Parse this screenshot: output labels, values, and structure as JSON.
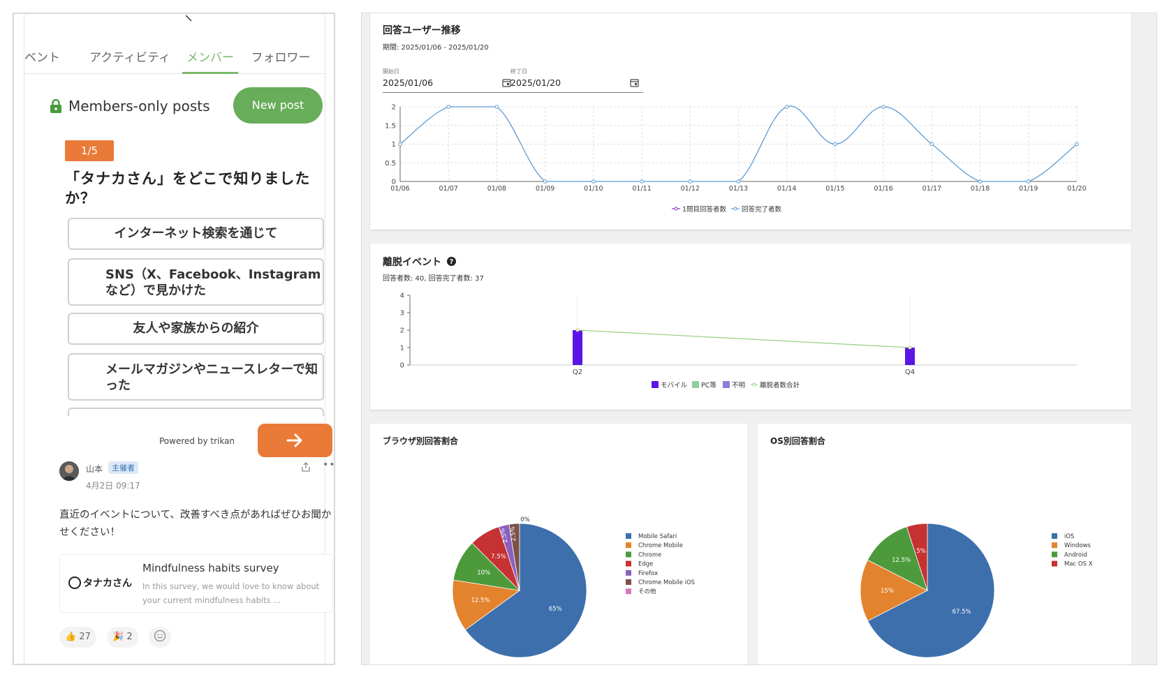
{
  "phone": {
    "tabs": [
      "ベント",
      "アクティビティ",
      "メンバー",
      "フォロワー"
    ],
    "active_tab_index": 2,
    "members_title": "Members-only posts",
    "new_post_label": "New post",
    "question_badge": "1/5",
    "question_text": "「タナカさん」をどこで知りましたか？",
    "options": [
      "インターネット検索を通じて",
      "SNS（X、Facebook、Instagramなど）で見かけた",
      "友人や家族からの紹介",
      "メールマガジンやニュースレターで知った"
    ],
    "powered_by": "Powered by trikan",
    "post": {
      "author": "山本",
      "role_badge": "主催者",
      "date": "4月2日 09:17",
      "body": "直近のイベントについて、改善すべき点があればぜひお聞かせください！",
      "survey_logo": "タナカさん",
      "survey_title": "Mindfulness habits survey",
      "survey_desc": "In this survey, we would love to know about your current mindfulness habits ..."
    },
    "reactions": [
      {
        "emoji": "👍",
        "count": "27"
      },
      {
        "emoji": "🎉",
        "count": "2"
      }
    ]
  },
  "dashboard": {
    "trend": {
      "title": "回答ユーザー推移",
      "period": "期間: 2025/01/06 - 2025/01/20",
      "start_label": "開始日",
      "start_value": "2025/01/06",
      "end_label": "終了日",
      "end_value": "2025/01/20"
    },
    "dropout": {
      "title": "離脱イベント",
      "subtitle": "回答者数: 40, 回答完了者数: 37"
    },
    "browser_title": "ブラウザ別回答割合",
    "os_title": "OS別回答割合"
  },
  "chart_data": [
    {
      "type": "line",
      "x": [
        "01/06",
        "01/07",
        "01/08",
        "01/09",
        "01/10",
        "01/11",
        "01/12",
        "01/13",
        "01/14",
        "01/15",
        "01/16",
        "01/17",
        "01/18",
        "01/19",
        "01/20"
      ],
      "series": [
        {
          "name": "1問目回答者数",
          "color": "#8b2fc9",
          "values": [
            1,
            2,
            2,
            0,
            0,
            0,
            0,
            0,
            2,
            1,
            2,
            1,
            0,
            0,
            1
          ]
        },
        {
          "name": "回答完了者数",
          "color": "#5b9bd5",
          "values": [
            1,
            2,
            2,
            0,
            0,
            0,
            0,
            0,
            2,
            1,
            2,
            1,
            0,
            0,
            1
          ]
        }
      ],
      "yticks": [
        "0",
        "0.5",
        "1",
        "1.5",
        "2"
      ],
      "ylim": [
        0,
        2
      ],
      "grid": true,
      "legend": "bottom"
    },
    {
      "type": "bar",
      "categories": [
        "Q2",
        "Q4"
      ],
      "series": [
        {
          "name": "モバイル",
          "color": "#5b16e6",
          "values": [
            2,
            1
          ]
        },
        {
          "name": "PC等",
          "color": "#8fd19e",
          "values": [
            0,
            0
          ]
        },
        {
          "name": "不明",
          "color": "#8b7fd6",
          "values": [
            0,
            0
          ]
        },
        {
          "name": "離脱者数合計",
          "color": "#9bd18a",
          "values": [
            2,
            1
          ],
          "line": true
        }
      ],
      "yticks": [
        "0",
        "1",
        "2",
        "3",
        "4"
      ],
      "ylim": [
        0,
        4
      ],
      "legend": "bottom"
    },
    {
      "type": "pie",
      "labels": [
        "Mobile Safari",
        "Chrome Mobile",
        "Chrome",
        "Edge",
        "Firefox",
        "Chrome Mobile iOS",
        "その他"
      ],
      "values": [
        65,
        12.5,
        10,
        7.5,
        2.5,
        2.5,
        0
      ],
      "value_labels": [
        "65%",
        "12.5%",
        "10%",
        "7.5%",
        "2.5%",
        "2.5%",
        "0%"
      ],
      "colors": [
        "#3c6fac",
        "#e3832e",
        "#4c9a3c",
        "#c63232",
        "#8a62be",
        "#7d5145",
        "#d678c1"
      ],
      "legend": "right"
    },
    {
      "type": "pie",
      "labels": [
        "iOS",
        "Windows",
        "Android",
        "Mac OS X"
      ],
      "values": [
        67.5,
        15,
        12.5,
        5
      ],
      "value_labels": [
        "67.5%",
        "15%",
        "12.5%",
        "5%"
      ],
      "colors": [
        "#3c6fac",
        "#e3832e",
        "#4c9a3c",
        "#c63232"
      ],
      "legend": "right"
    }
  ]
}
